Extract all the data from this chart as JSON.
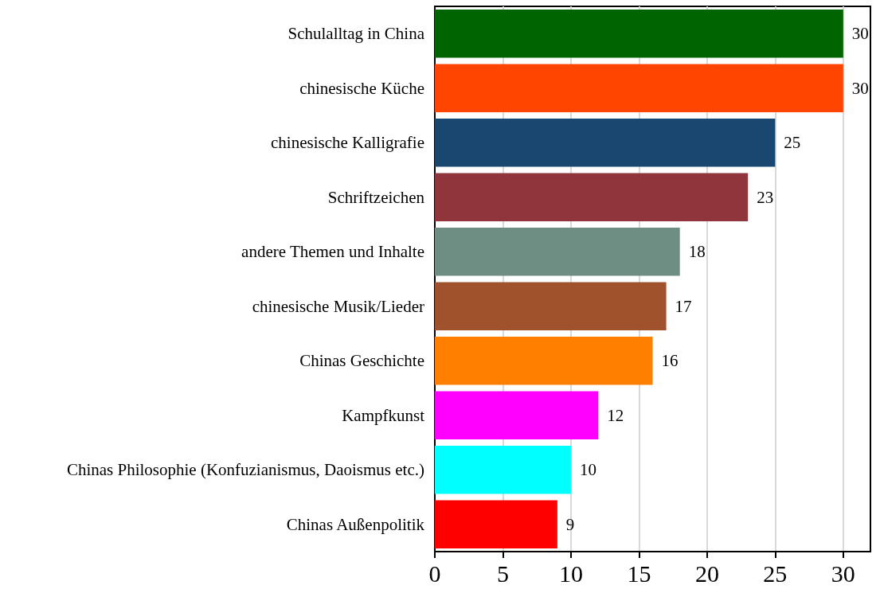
{
  "chart_data": {
    "type": "bar",
    "orientation": "horizontal",
    "categories": [
      "Schulalltag in China",
      "chinesische Küche",
      "chinesische Kalligrafie",
      "Schriftzeichen",
      "andere Themen und Inhalte",
      "chinesische Musik/Lieder",
      "Chinas Geschichte",
      "Kampfkunst",
      "Chinas Philosophie (Konfuzianismus, Daoismus etc.)",
      "Chinas Außenpolitik"
    ],
    "values": [
      30,
      30,
      25,
      23,
      18,
      17,
      16,
      12,
      10,
      9
    ],
    "colors": [
      "#006400",
      "#ff4500",
      "#1a476f",
      "#90353b",
      "#6e8e84",
      "#a0522d",
      "#ff7f00",
      "#ff00ff",
      "#00ffff",
      "#ff0000"
    ],
    "xlim": [
      0,
      32
    ],
    "xticks": [
      0,
      5,
      10,
      15,
      20,
      25,
      30
    ],
    "grid": "x",
    "data_labels": true
  }
}
